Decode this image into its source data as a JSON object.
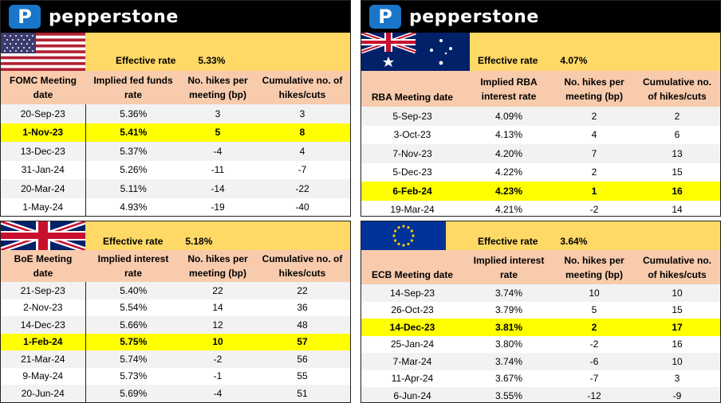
{
  "brand": "pepperstone",
  "colors": {
    "header_yellow": "#ffd966",
    "column_header_peach": "#f8cbad",
    "highlight": "#ffff00",
    "logo_blue": "#1976c9"
  },
  "panels": {
    "fomc": {
      "flag": "usa-flag-icon",
      "effective_label": "Effective rate",
      "effective_value": "5.33%",
      "headers": [
        "FOMC Meeting date",
        "Implied fed funds rate",
        "No. hikes per meeting (bp)",
        "Cumulative no. of hikes/cuts"
      ],
      "highlight_row": 1,
      "rows": [
        [
          "20-Sep-23",
          "5.36%",
          "3",
          "3"
        ],
        [
          "1-Nov-23",
          "5.41%",
          "5",
          "8"
        ],
        [
          "13-Dec-23",
          "5.37%",
          "-4",
          "4"
        ],
        [
          "31-Jan-24",
          "5.26%",
          "-11",
          "-7"
        ],
        [
          "20-Mar-24",
          "5.11%",
          "-14",
          "-22"
        ],
        [
          "1-May-24",
          "4.93%",
          "-19",
          "-40"
        ]
      ]
    },
    "rba": {
      "flag": "australia-flag-icon",
      "effective_label": "Effective rate",
      "effective_value": "4.07%",
      "headers": [
        "RBA Meeting date",
        "Implied RBA interest rate",
        "No. hikes per meeting (bp)",
        "Cumulative no. of hikes/cuts"
      ],
      "highlight_row": 4,
      "rows": [
        [
          "5-Sep-23",
          "4.09%",
          "2",
          "2"
        ],
        [
          "3-Oct-23",
          "4.13%",
          "4",
          "6"
        ],
        [
          "7-Nov-23",
          "4.20%",
          "7",
          "13"
        ],
        [
          "5-Dec-23",
          "4.22%",
          "2",
          "15"
        ],
        [
          "6-Feb-24",
          "4.23%",
          "1",
          "16"
        ],
        [
          "19-Mar-24",
          "4.21%",
          "-2",
          "14"
        ]
      ]
    },
    "boe": {
      "flag": "uk-flag-icon",
      "effective_label": "Effective rate",
      "effective_value": "5.18%",
      "headers": [
        "BoE Meeting date",
        "Implied interest rate",
        "No. hikes per meeting (bp)",
        "Cumulative no. of hikes/cuts"
      ],
      "highlight_row": 3,
      "rows": [
        [
          "21-Sep-23",
          "5.40%",
          "22",
          "22"
        ],
        [
          "2-Nov-23",
          "5.54%",
          "14",
          "36"
        ],
        [
          "14-Dec-23",
          "5.66%",
          "12",
          "48"
        ],
        [
          "1-Feb-24",
          "5.75%",
          "10",
          "57"
        ],
        [
          "21-Mar-24",
          "5.74%",
          "-2",
          "56"
        ],
        [
          "9-May-24",
          "5.73%",
          "-1",
          "55"
        ],
        [
          "20-Jun-24",
          "5.69%",
          "-4",
          "51"
        ]
      ]
    },
    "ecb": {
      "flag": "eu-flag-icon",
      "effective_label": "Effective rate",
      "effective_value": "3.64%",
      "headers": [
        "ECB Meeting date",
        "Implied interest rate",
        "No. hikes per meeting (bp)",
        "Cumulative no. of hikes/cuts"
      ],
      "highlight_row": 2,
      "rows": [
        [
          "14-Sep-23",
          "3.74%",
          "10",
          "10"
        ],
        [
          "26-Oct-23",
          "3.79%",
          "5",
          "15"
        ],
        [
          "14-Dec-23",
          "3.81%",
          "2",
          "17"
        ],
        [
          "25-Jan-24",
          "3.80%",
          "-2",
          "16"
        ],
        [
          "7-Mar-24",
          "3.74%",
          "-6",
          "10"
        ],
        [
          "11-Apr-24",
          "3.67%",
          "-7",
          "3"
        ],
        [
          "6-Jun-24",
          "3.55%",
          "-12",
          "-9"
        ]
      ]
    }
  }
}
